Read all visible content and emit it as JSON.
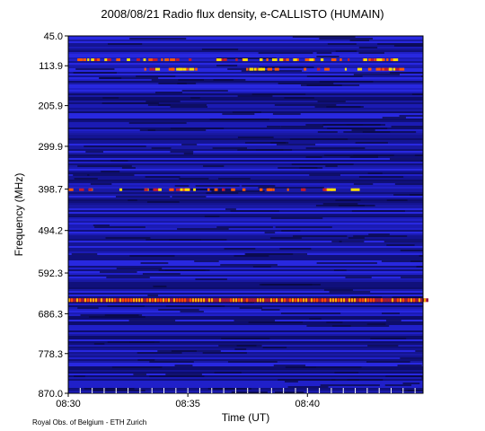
{
  "chart_data": {
    "type": "heatmap",
    "title": "2008/08/21  Radio flux density, e-CALLISTO (HUMAIN)",
    "xlabel": "Time (UT)",
    "ylabel": "Frequency (MHz)",
    "credit": "Royal Obs. of Belgium - ETH Zurich",
    "x_range": [
      "08:30",
      "08:44:50"
    ],
    "x_ticks": [
      "08:30",
      "08:35",
      "08:40"
    ],
    "y_range": [
      45.0,
      870.0
    ],
    "y_ticks": [
      "45.0",
      "113.9",
      "205.9",
      "299.9",
      "398.7",
      "494.2",
      "592.3",
      "686.3",
      "778.3",
      "870.0"
    ],
    "colormap": [
      "#0a0a4a",
      "#1a1ab5",
      "#3030ff",
      "#8a2a8a",
      "#ff3a00",
      "#ffd800",
      "#ffffff"
    ],
    "background_level": "blue (low intensity)",
    "features": [
      {
        "label": "intermittent emission band",
        "freq_mhz": 100,
        "time_start": "08:30",
        "time_end": "08:44",
        "intensity": "high"
      },
      {
        "label": "intermittent emission band",
        "freq_mhz": 122,
        "time_start": "08:33",
        "time_end": "08:44",
        "intensity": "medium"
      },
      {
        "label": "intermittent emission band",
        "freq_mhz": 400,
        "time_start": "08:30",
        "time_end": "08:42",
        "intensity": "medium"
      },
      {
        "label": "continuous emission band",
        "freq_mhz": 655,
        "time_start": "08:30",
        "time_end": "08:45",
        "intensity": "high"
      }
    ]
  }
}
